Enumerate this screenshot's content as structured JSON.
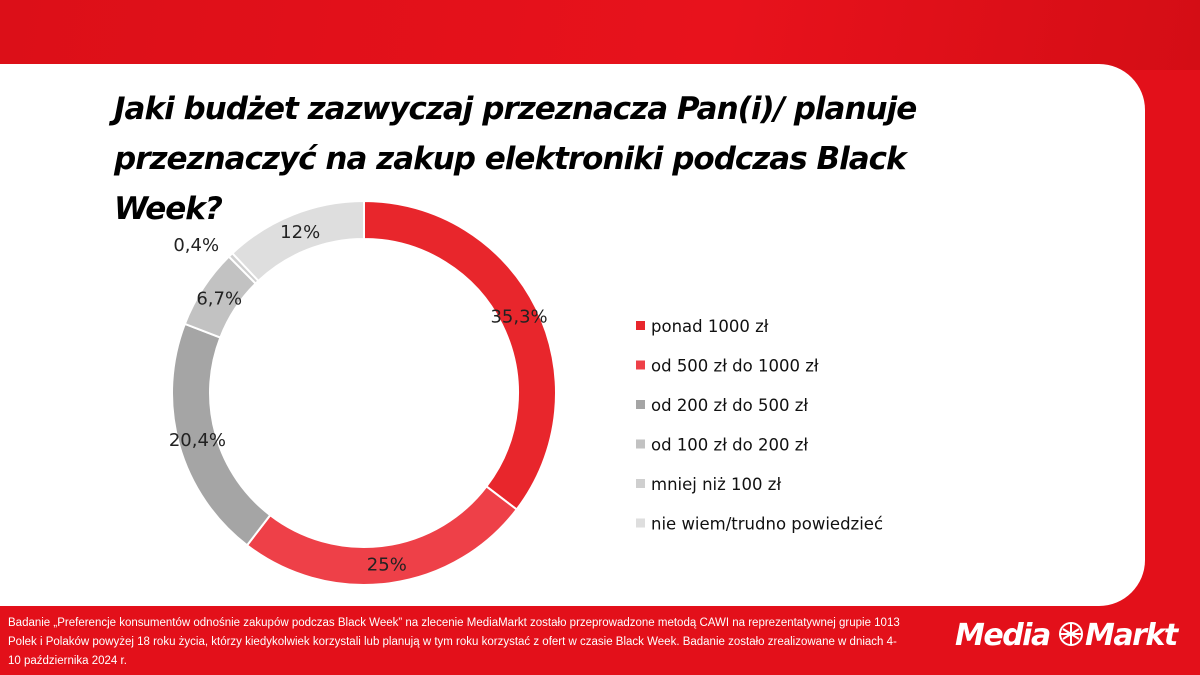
{
  "title": "Jaki budżet zazwyczaj przeznacza Pan(i)/ planuje przeznaczyć na zakup elektroniki podczas Black Week?",
  "footer": {
    "note": "Badanie „Preferencje konsumentów odnośnie zakupów podczas Black Week” na zlecenie MediaMarkt zostało przeprowadzone metodą CAWI na reprezentatywnej  grupie 1013 Polek i Polaków powyżej 18 roku życia, którzy kiedykolwiek korzystali lub planują w tym roku korzystać z ofert w czasie Black Week. Badanie zostało zrealizowane w dniach 4-10 października 2024 r."
  },
  "brand": {
    "logo_text": "MediaMarkt"
  },
  "colors": {
    "brand_red": "#e3101a",
    "panel": "#ffffff"
  },
  "chart_data": {
    "type": "pie",
    "donut": true,
    "legend_position": "right",
    "slices": [
      {
        "label": "ponad 1000 zł",
        "value": 35.3,
        "value_label": "35,3%",
        "color": "#e8262c"
      },
      {
        "label": "od 500 zł do 1000 zł",
        "value": 25,
        "value_label": "25%",
        "color": "#ee4048"
      },
      {
        "label": "od 200 zł do 500 zł",
        "value": 20.4,
        "value_label": "20,4%",
        "color": "#a5a5a5"
      },
      {
        "label": "od 100 zł do 200 zł",
        "value": 6.7,
        "value_label": "6,7%",
        "color": "#c2c2c2"
      },
      {
        "label": "mniej niż 100 zł",
        "value": 0.4,
        "value_label": "0,4%",
        "color": "#cfcfcf"
      },
      {
        "label": "nie wiem/trudno powiedzieć",
        "value": 12,
        "value_label": "12%",
        "color": "#dedede"
      }
    ]
  }
}
